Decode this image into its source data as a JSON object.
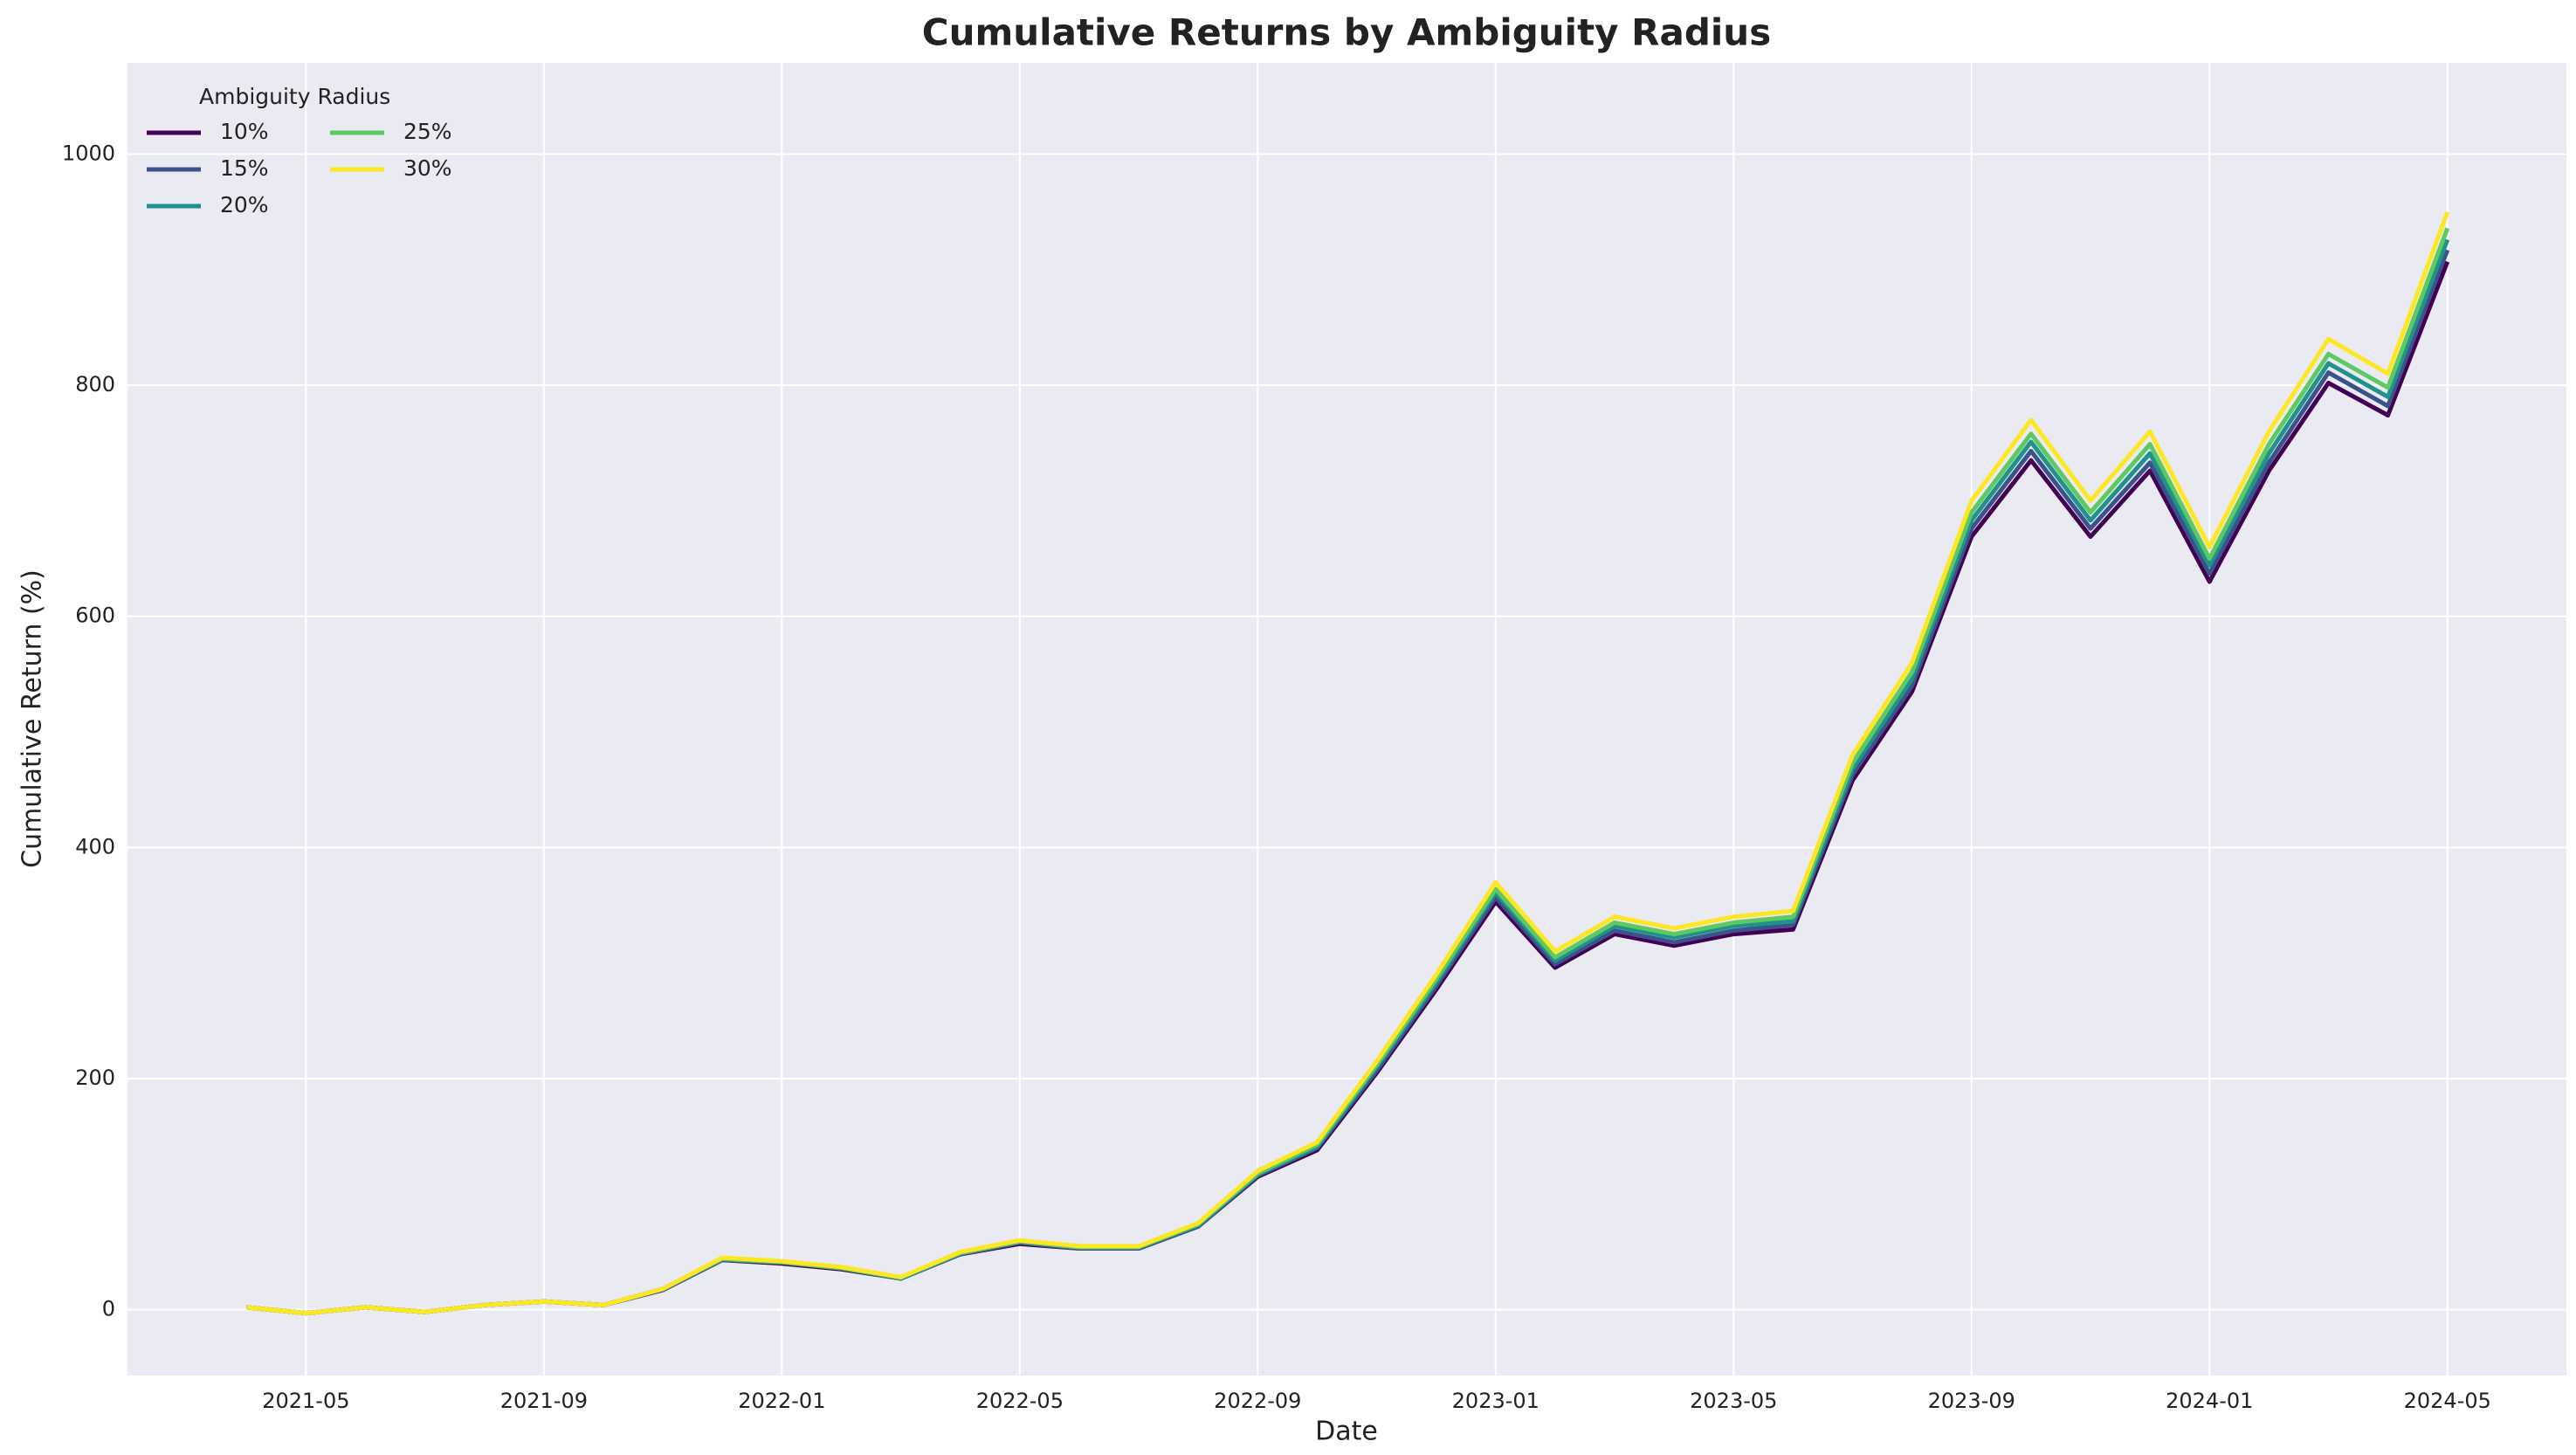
{
  "chart_data": {
    "type": "line",
    "title": "Cumulative Returns by Ambiguity Radius",
    "x_label": "Date",
    "y_label": "Cumulative Return (%)",
    "x": [
      "2021-04",
      "2021-05",
      "2021-06",
      "2021-07",
      "2021-08",
      "2021-09",
      "2021-10",
      "2021-11",
      "2021-12",
      "2022-01",
      "2022-02",
      "2022-03",
      "2022-04",
      "2022-05",
      "2022-06",
      "2022-07",
      "2022-08",
      "2022-09",
      "2022-10",
      "2022-11",
      "2022-12",
      "2023-01",
      "2023-02",
      "2023-03",
      "2023-04",
      "2023-05",
      "2023-06",
      "2023-07",
      "2023-08",
      "2023-09",
      "2023-10",
      "2023-11",
      "2023-12",
      "2024-01",
      "2024-02",
      "2024-03",
      "2024-04",
      "2024-05"
    ],
    "series": [
      {
        "name": "10%",
        "color": "#440154",
        "values": [
          2,
          -3,
          2,
          -2,
          4,
          7,
          4,
          17,
          43,
          40,
          35,
          27,
          48,
          57,
          53,
          53,
          72,
          115,
          138,
          205,
          277,
          353,
          296,
          325,
          315,
          325,
          329,
          458,
          535,
          669,
          735,
          669,
          726,
          630,
          726,
          802,
          774,
          907
        ]
      },
      {
        "name": "15%",
        "color": "#3b528b",
        "values": [
          2,
          -3,
          2,
          -2,
          4,
          7,
          4,
          17,
          43,
          41,
          36,
          27,
          48,
          58,
          53,
          53,
          72,
          116,
          140,
          207,
          280,
          357,
          299,
          328,
          318,
          328,
          333,
          463,
          540,
          676,
          743,
          676,
          733,
          637,
          733,
          811,
          782,
          917
        ]
      },
      {
        "name": "20%",
        "color": "#21918c",
        "values": [
          2,
          -3,
          2,
          -2,
          4,
          7,
          4,
          18,
          44,
          41,
          36,
          27,
          49,
          59,
          54,
          54,
          73,
          117,
          141,
          210,
          283,
          361,
          302,
          332,
          322,
          332,
          336,
          468,
          546,
          683,
          751,
          683,
          741,
          644,
          741,
          819,
          790,
          926
        ]
      },
      {
        "name": "25%",
        "color": "#5ec962",
        "values": [
          2,
          -3,
          2,
          -2,
          4,
          7,
          4,
          18,
          44,
          41,
          36,
          28,
          49,
          59,
          54,
          54,
          74,
          118,
          143,
          212,
          286,
          364,
          305,
          335,
          325,
          335,
          340,
          473,
          552,
          690,
          758,
          690,
          749,
          650,
          749,
          827,
          798,
          936
        ]
      },
      {
        "name": "30%",
        "color": "#fde725",
        "values": [
          2,
          -3,
          2,
          -2,
          4,
          7,
          4,
          18,
          45,
          42,
          37,
          28,
          50,
          60,
          55,
          55,
          75,
          120,
          145,
          215,
          290,
          370,
          310,
          340,
          330,
          340,
          345,
          480,
          560,
          700,
          770,
          700,
          760,
          660,
          760,
          840,
          810,
          950
        ]
      }
    ],
    "xlim": [
      "2021-02",
      "2024-07"
    ],
    "xticks": [
      "2021-05",
      "2021-09",
      "2022-01",
      "2022-05",
      "2022-09",
      "2023-01",
      "2023-05",
      "2023-09",
      "2024-01",
      "2024-05"
    ],
    "ylim": [
      -57,
      1079
    ],
    "yticks": [
      0,
      200,
      400,
      600,
      800,
      1000
    ],
    "grid": true,
    "legend": {
      "title": "Ambiguity Radius",
      "loc": "upper left",
      "ncol": 2
    }
  }
}
